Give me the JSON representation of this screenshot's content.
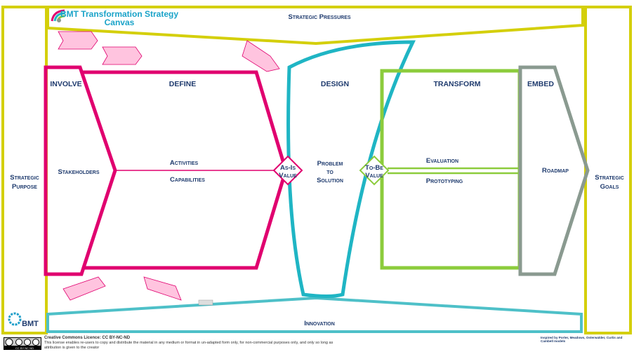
{
  "title_line1": "BMT Transformation Strategy",
  "title_line2": "Canvas",
  "strategic_purpose": [
    "Strategic",
    "Purpose"
  ],
  "strategic_goals": [
    "Strategic",
    "Goals"
  ],
  "strategic_pressures": "Strategic Pressures",
  "innovation": "Innovation",
  "stages": {
    "involve": "INVOLVE",
    "define": "DEFINE",
    "design": "DESIGN",
    "transform": "TRANSFORM",
    "embed": "EMBED"
  },
  "nodes": {
    "stakeholders": "Stakeholders",
    "activities": "Activities",
    "capabilities": "Capabilities",
    "problem": [
      "Problem",
      "to",
      "Solution"
    ],
    "evaluation": "Evaluation",
    "prototyping": "Prototyping",
    "roadmap": "Roadmap"
  },
  "as_is": [
    "As-Is",
    "Value"
  ],
  "to_be": [
    "To-Be",
    "Value"
  ],
  "logo": "BMT",
  "licence_title": "Creative Commons Licence: CC BY-NC-ND",
  "licence_text": "This license enables re-users to copy and distribute the material in any medium or format in un-adapted form only, for non-commercial purposes only, and only so long as",
  "licence_text2": "attribution is given to the creator",
  "licence_badge": "CC BY NC ND",
  "inspired": "Inspired by Porter, Meadows, Osterwalder, Curtis and Cambell models",
  "colors": {
    "yellow": "#d4cf0a",
    "magenta": "#e0006f",
    "teal": "#1fb5c4",
    "green": "#8ccc3c",
    "gray": "#8a9a90",
    "text": "#1f3b6e"
  }
}
